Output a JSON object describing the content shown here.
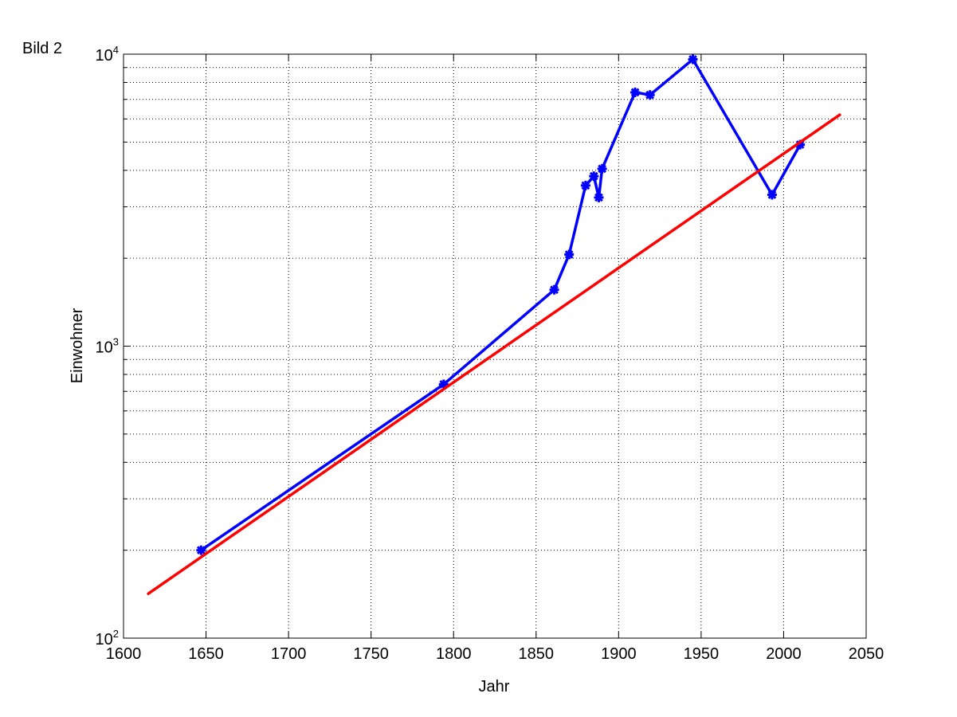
{
  "figure_label": "Bild 2",
  "chart_data": {
    "type": "line",
    "xlabel": "Jahr",
    "ylabel": "Einwohner",
    "xlim": [
      1600,
      2050
    ],
    "ylim": [
      100,
      10000
    ],
    "y_scale": "log",
    "grid": true,
    "x_ticks": [
      1600,
      1650,
      1700,
      1750,
      1800,
      1850,
      1900,
      1950,
      2000,
      2050
    ],
    "y_ticks": [
      {
        "value": 100,
        "base": "10",
        "exponent": "2"
      },
      {
        "value": 1000,
        "base": "10",
        "exponent": "3"
      },
      {
        "value": 10000,
        "base": "10",
        "exponent": "4"
      }
    ],
    "series": [
      {
        "color": "#0000ff",
        "marker": "asterisk",
        "x": [
          1647,
          1794,
          1861,
          1870,
          1880,
          1885,
          1888,
          1890,
          1910,
          1919,
          1945,
          1993,
          2010
        ],
        "y": [
          200,
          740,
          1560,
          2060,
          3550,
          3820,
          3230,
          4050,
          7400,
          7250,
          9600,
          3300,
          4900
        ]
      },
      {
        "color": "#ff0000",
        "marker": "none",
        "x": [
          1615,
          2034
        ],
        "y": [
          142,
          6200
        ]
      }
    ]
  }
}
